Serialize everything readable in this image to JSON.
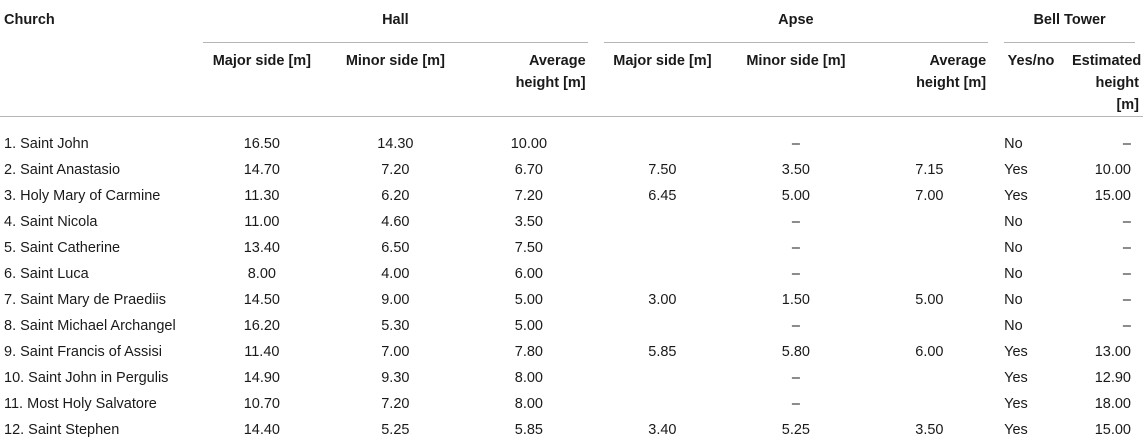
{
  "header": {
    "church": "Church",
    "hall": "Hall",
    "apse": "Apse",
    "bell_tower": "Bell Tower",
    "hall_major": "Major side [m]",
    "hall_minor": "Minor side [m]",
    "hall_avg_1": "Average",
    "hall_avg_2": "height [m]",
    "apse_major": "Major side [m]",
    "apse_minor": "Minor side [m]",
    "apse_avg_1": "Average",
    "apse_avg_2": "height [m]",
    "bt_yesno": "Yes/no",
    "bt_est_1": "Estimated",
    "bt_est_2": "height [m]"
  },
  "rows": [
    {
      "name": "1. Saint John",
      "hall_major": "16.50",
      "hall_minor": "14.30",
      "hall_avg": "10.00",
      "apse_major": "",
      "apse_minor": "–",
      "apse_avg": "",
      "tower": "No",
      "tower_h": "–"
    },
    {
      "name": "2. Saint Anastasio",
      "hall_major": "14.70",
      "hall_minor": "7.20",
      "hall_avg": "6.70",
      "apse_major": "7.50",
      "apse_minor": "3.50",
      "apse_avg": "7.15",
      "tower": "Yes",
      "tower_h": "10.00"
    },
    {
      "name": "3. Holy Mary of Carmine",
      "hall_major": "11.30",
      "hall_minor": "6.20",
      "hall_avg": "7.20",
      "apse_major": "6.45",
      "apse_minor": "5.00",
      "apse_avg": "7.00",
      "tower": "Yes",
      "tower_h": "15.00"
    },
    {
      "name": "4. Saint Nicola",
      "hall_major": "11.00",
      "hall_minor": "4.60",
      "hall_avg": "3.50",
      "apse_major": "",
      "apse_minor": "–",
      "apse_avg": "",
      "tower": "No",
      "tower_h": "–"
    },
    {
      "name": "5. Saint Catherine",
      "hall_major": "13.40",
      "hall_minor": "6.50",
      "hall_avg": "7.50",
      "apse_major": "",
      "apse_minor": "–",
      "apse_avg": "",
      "tower": "No",
      "tower_h": "–"
    },
    {
      "name": "6. Saint Luca",
      "hall_major": "8.00",
      "hall_minor": "4.00",
      "hall_avg": "6.00",
      "apse_major": "",
      "apse_minor": "–",
      "apse_avg": "",
      "tower": "No",
      "tower_h": "–"
    },
    {
      "name": "7. Saint Mary de Praediis",
      "hall_major": "14.50",
      "hall_minor": "9.00",
      "hall_avg": "5.00",
      "apse_major": "3.00",
      "apse_minor": "1.50",
      "apse_avg": "5.00",
      "tower": "No",
      "tower_h": "–"
    },
    {
      "name": "8. Saint Michael Archangel",
      "hall_major": "16.20",
      "hall_minor": "5.30",
      "hall_avg": "5.00",
      "apse_major": "",
      "apse_minor": "–",
      "apse_avg": "",
      "tower": "No",
      "tower_h": "–"
    },
    {
      "name": "9. Saint Francis of Assisi",
      "hall_major": "11.40",
      "hall_minor": "7.00",
      "hall_avg": "7.80",
      "apse_major": "5.85",
      "apse_minor": "5.80",
      "apse_avg": "6.00",
      "tower": "Yes",
      "tower_h": "13.00"
    },
    {
      "name": "10. Saint John in Pergulis",
      "hall_major": "14.90",
      "hall_minor": "9.30",
      "hall_avg": "8.00",
      "apse_major": "",
      "apse_minor": "–",
      "apse_avg": "",
      "tower": "Yes",
      "tower_h": "12.90"
    },
    {
      "name": "11. Most Holy Salvatore",
      "hall_major": "10.70",
      "hall_minor": "7.20",
      "hall_avg": "8.00",
      "apse_major": "",
      "apse_minor": "–",
      "apse_avg": "",
      "tower": "Yes",
      "tower_h": "18.00"
    },
    {
      "name": "12. Saint Stephen",
      "hall_major": "14.40",
      "hall_minor": "5.25",
      "hall_avg": "5.85",
      "apse_major": "3.40",
      "apse_minor": "5.25",
      "apse_avg": "3.50",
      "tower": "Yes",
      "tower_h": "15.00"
    }
  ]
}
